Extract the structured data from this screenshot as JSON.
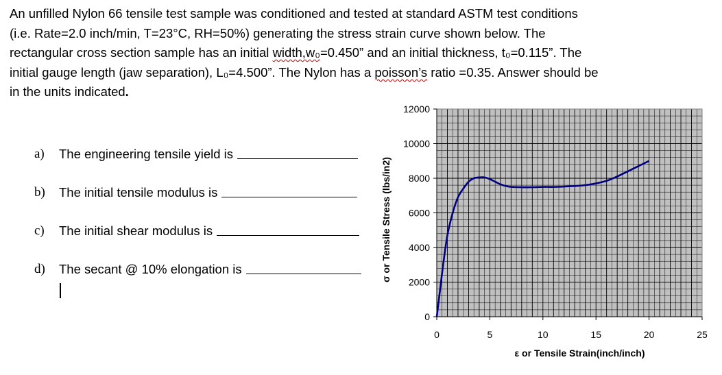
{
  "intro": {
    "line1": "An unfilled Nylon 66 tensile test sample was conditioned and tested at standard ASTM test conditions",
    "line2": "(i.e. Rate=2.0 inch/min, T=23°C, RH=50%) generating the stress strain curve shown below. The",
    "line3_a": "rectangular cross section sample has an initial ",
    "line3_b": "width,w₀",
    "line3_c": "=0.450” and an initial thickness, t₀=0.115”. The",
    "line4_a": "initial gauge length (jaw separation), L₀=4.500”. The Nylon has a ",
    "line4_b": "poisson’s",
    "line4_c": " ratio =0.35. Answer should be",
    "line5": "in the units indicated",
    "line5_end": "."
  },
  "questions": [
    {
      "letter": "a)",
      "text": "The engineering tensile yield is"
    },
    {
      "letter": "b)",
      "text": "The initial tensile modulus is"
    },
    {
      "letter": "c)",
      "text": "The initial shear modulus is"
    },
    {
      "letter": "d)",
      "text": "The secant @ 10% elongation is"
    }
  ],
  "chart_data": {
    "type": "line",
    "xlabel": "ε or Tensile Strain(inch/inch)",
    "ylabel": "σ or Tensile Stress (lbs/in2)",
    "xlim": [
      0,
      25
    ],
    "ylim": [
      0,
      12000
    ],
    "xticks": [
      "0",
      "5",
      "10",
      "15",
      "20",
      "25"
    ],
    "yticks": [
      "0",
      "2000",
      "4000",
      "6000",
      "8000",
      "10000",
      "12000"
    ],
    "grid": true,
    "plot_area_color": "#c0c0c0",
    "line_color": "#000080",
    "series": [
      {
        "x": [
          0,
          0.3,
          0.6,
          1.0,
          1.5,
          2.0,
          2.5,
          3.0,
          3.5,
          4.0,
          4.5,
          5.0,
          5.5,
          6.0,
          6.5,
          7.0,
          8.0,
          9.0,
          10.0,
          11.0,
          12.0,
          13.0,
          14.0,
          15.0,
          16.0,
          17.0,
          18.0,
          19.0,
          20.0
        ],
        "y": [
          0,
          1500,
          3000,
          4700,
          6000,
          6900,
          7400,
          7800,
          8000,
          8050,
          8050,
          7950,
          7800,
          7650,
          7550,
          7500,
          7480,
          7480,
          7500,
          7500,
          7520,
          7550,
          7600,
          7700,
          7850,
          8100,
          8400,
          8700,
          9000
        ]
      }
    ]
  }
}
